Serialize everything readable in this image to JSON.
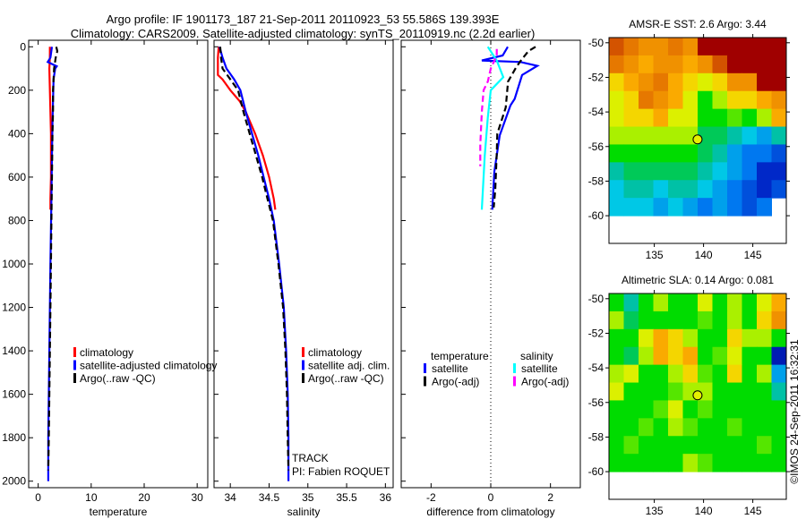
{
  "title_line1": "Argo profile: IF 1901173_187 21-Sep-2011 20110923_53 55.586S 139.393E",
  "title_line2": "Climatology: CARS2009. Satellite-adjusted climatology: synTS_20110919.nc (2.2d earlier)",
  "track_text": "TRACK",
  "pi_text": "PI: Fabien ROQUET",
  "copyright": "©IMOS 24-Sep-2011 16:32:31",
  "colors": {
    "climatology": "#ff0000",
    "satellite": "#0000ff",
    "argo": "#000000",
    "sal_satellite": "#00ffff",
    "sal_argo": "#ff00ff"
  },
  "chart_data": [
    {
      "type": "line",
      "xlabel": "temperature",
      "ylabel": "",
      "xlim": [
        -1.8,
        32
      ],
      "ylim": [
        2030,
        -30
      ],
      "xticks": [
        0,
        10,
        20,
        30
      ],
      "yticks": [
        0,
        200,
        400,
        600,
        800,
        1000,
        1200,
        1400,
        1600,
        1800,
        2000
      ],
      "legend": [
        "climatology",
        "satellite-adjusted climatology",
        "Argo(..raw -QC)"
      ],
      "legend_position": "center",
      "series": [
        {
          "name": "climatology",
          "color": "#ff0000",
          "dashed": false,
          "depth": [
            0,
            50,
            100,
            200,
            300,
            400,
            500,
            600,
            700,
            750
          ],
          "values": [
            2.2,
            2.2,
            2.1,
            2.2,
            2.3,
            2.4,
            2.4,
            2.4,
            2.3,
            2.3
          ]
        },
        {
          "name": "satellite-adjusted climatology",
          "color": "#0000ff",
          "dashed": false,
          "depth": [
            0,
            50,
            70,
            90,
            100,
            150,
            250,
            350,
            500,
            700,
            1000,
            1400,
            1800,
            2000
          ],
          "values": [
            2.6,
            2.3,
            1.8,
            3.5,
            3.2,
            2.9,
            2.8,
            2.7,
            2.6,
            2.5,
            2.3,
            2.1,
            1.9,
            1.9
          ]
        },
        {
          "name": "Argo(..raw -QC)",
          "color": "#000000",
          "dashed": true,
          "depth": [
            0,
            20,
            50,
            100,
            150,
            200,
            300,
            400,
            600,
            800,
            1000,
            1200,
            1400,
            1600,
            1800,
            1950
          ],
          "values": [
            3.4,
            3.6,
            3.3,
            3.0,
            2.9,
            2.8,
            2.8,
            2.7,
            2.6,
            2.5,
            2.4,
            2.3,
            2.2,
            2.1,
            2.0,
            1.9
          ]
        }
      ]
    },
    {
      "type": "line",
      "xlabel": "salinity",
      "xlim": [
        33.79,
        36.1
      ],
      "ylim": [
        2030,
        -30
      ],
      "xticks": [
        34,
        34.5,
        35,
        35.5,
        36
      ],
      "yticks": [
        0,
        200,
        400,
        600,
        800,
        1000,
        1200,
        1400,
        1600,
        1800,
        2000
      ],
      "legend": [
        "climatology",
        "satellite adj. clim.",
        "Argo(..raw -QC)"
      ],
      "legend_position": "center",
      "series": [
        {
          "name": "climatology",
          "color": "#ff0000",
          "dashed": false,
          "depth": [
            0,
            50,
            130,
            150,
            200,
            250,
            300,
            400,
            500,
            600,
            700,
            750
          ],
          "values": [
            33.85,
            33.84,
            33.84,
            33.9,
            34.0,
            34.12,
            34.2,
            34.32,
            34.42,
            34.5,
            34.56,
            34.58
          ]
        },
        {
          "name": "satellite adj. clim.",
          "color": "#0000ff",
          "dashed": false,
          "depth": [
            0,
            50,
            100,
            150,
            200,
            300,
            400,
            500,
            600,
            700,
            800,
            1000,
            1200,
            1400,
            1600,
            1800,
            2000
          ],
          "values": [
            33.86,
            33.9,
            33.95,
            34.05,
            34.13,
            34.2,
            34.28,
            34.36,
            34.43,
            34.5,
            34.56,
            34.63,
            34.69,
            34.72,
            34.74,
            34.75,
            34.75
          ]
        },
        {
          "name": "Argo(..raw -QC)",
          "color": "#000000",
          "dashed": true,
          "depth": [
            0,
            50,
            100,
            150,
            200,
            300,
            400,
            500,
            600,
            700,
            800,
            1000,
            1200,
            1400,
            1600,
            1800,
            1950
          ],
          "values": [
            33.87,
            33.88,
            33.9,
            34.0,
            34.1,
            34.17,
            34.25,
            34.33,
            34.41,
            34.48,
            34.55,
            34.62,
            34.68,
            34.71,
            34.73,
            34.74,
            34.75
          ]
        }
      ]
    },
    {
      "type": "line",
      "xlabel": "difference from climatology",
      "xlim": [
        -3,
        3
      ],
      "ylim": [
        2030,
        -30
      ],
      "xticks": [
        -2,
        0,
        2
      ],
      "yticks": [
        0,
        200,
        400,
        600,
        800,
        1000,
        1200,
        1400,
        1600,
        1800,
        2000
      ],
      "legend_groups": [
        {
          "heading": "temperature",
          "entries": [
            "satellite",
            "Argo(-adj)"
          ]
        },
        {
          "heading": "salinity",
          "entries": [
            "satellite",
            "Argo(-adj)"
          ]
        }
      ],
      "series": [
        {
          "name": "temperature satellite",
          "color": "#0000ff",
          "dashed": false,
          "depth": [
            0,
            40,
            63,
            70,
            88,
            130,
            240,
            270,
            408,
            575,
            750
          ],
          "values": [
            0.57,
            0.4,
            -0.3,
            1.0,
            1.56,
            1.05,
            0.8,
            0.66,
            0.3,
            0.12,
            0.05
          ]
        },
        {
          "name": "temperature Argo(-adj)",
          "color": "#000000",
          "dashed": true,
          "depth": [
            0,
            20,
            65,
            95,
            160,
            280,
            400,
            490,
            660,
            740
          ],
          "values": [
            1.5,
            1.26,
            1.0,
            0.85,
            0.58,
            0.5,
            0.22,
            0.2,
            0.15,
            0.1
          ]
        },
        {
          "name": "salinity satellite",
          "color": "#00ffff",
          "dashed": false,
          "depth": [
            0,
            63,
            140,
            200,
            325,
            500,
            750
          ],
          "values": [
            -0.1,
            0.2,
            0.42,
            0.0,
            -0.1,
            -0.2,
            -0.3
          ]
        },
        {
          "name": "salinity Argo(-adj)",
          "color": "#ff00ff",
          "dashed": true,
          "depth": [
            10,
            40,
            100,
            160,
            200,
            300,
            450,
            550
          ],
          "values": [
            0.2,
            0.2,
            0.0,
            -0.1,
            -0.24,
            -0.3,
            -0.35,
            -0.35
          ]
        }
      ]
    },
    {
      "type": "heatmap",
      "title": "AMSR-E SST: 2.6 Argo: 3.44",
      "xlim": [
        130.4,
        148.4
      ],
      "ylim": [
        -61.6,
        -49.7
      ],
      "xticks": [
        135,
        140,
        145
      ],
      "yticks": [
        -50,
        -52,
        -54,
        -56,
        -58,
        -60
      ],
      "lon_start": 130.4,
      "lon_step": 1.5,
      "lat_start": -49.7,
      "lat_step": -1.03,
      "color_scale_range": [
        0,
        10
      ],
      "argo_position": {
        "lon": 139.393,
        "lat": -55.586
      },
      "grid": [
        [
          9,
          8.5,
          8,
          8,
          8.5,
          8,
          10,
          10,
          10,
          10,
          10,
          10
        ],
        [
          8.5,
          8,
          7.5,
          8,
          8,
          7.5,
          8,
          9,
          10,
          10,
          10,
          10
        ],
        [
          7,
          7.5,
          8,
          8.5,
          7.5,
          7,
          6.5,
          7,
          8,
          8,
          10,
          10
        ],
        [
          6.5,
          7,
          8.5,
          8,
          7.5,
          6.5,
          5,
          6,
          7,
          7,
          7.5,
          8
        ],
        [
          6.5,
          7,
          7,
          7.5,
          6.5,
          6.5,
          5,
          5,
          5.5,
          5,
          6,
          7.5
        ],
        [
          6,
          6,
          6,
          6,
          6,
          6,
          4.5,
          4.5,
          4,
          3.5,
          3,
          4
        ],
        [
          5,
          5,
          5,
          5,
          5,
          5,
          4.5,
          4,
          3,
          2.5,
          2.5,
          2
        ],
        [
          4,
          4.5,
          4.5,
          4.5,
          4.5,
          4.5,
          4,
          3.5,
          3,
          2.5,
          1.5,
          1.5
        ],
        [
          3.5,
          4,
          4,
          3.5,
          4,
          4,
          3.5,
          3,
          2.5,
          2,
          1.5,
          2
        ],
        [
          3.5,
          3.5,
          3.5,
          3,
          3.5,
          3,
          2.5,
          3,
          2.5,
          2,
          2.5,
          null
        ]
      ]
    },
    {
      "type": "heatmap",
      "title": "Altimetric SLA: 0.14 Argo: 0.081",
      "xlim": [
        130.4,
        148.4
      ],
      "ylim": [
        -61.6,
        -49.7
      ],
      "xticks": [
        135,
        140,
        145
      ],
      "yticks": [
        -50,
        -52,
        -54,
        -56,
        -58,
        -60
      ],
      "lon_start": 130.4,
      "lon_step": 1.5,
      "lat_start": -49.7,
      "lat_step": -1.03,
      "color_scale_range": [
        0,
        10
      ],
      "argo_position": {
        "lon": 139.393,
        "lat": -55.586
      },
      "grid": [
        [
          5,
          4,
          5,
          6,
          5,
          5,
          6.5,
          5,
          6,
          5,
          6.5,
          7.5
        ],
        [
          6,
          4.5,
          5,
          5,
          5,
          5,
          5.5,
          5,
          6,
          5,
          7,
          8
        ],
        [
          5,
          5,
          6.5,
          7.5,
          7,
          6,
          5,
          5,
          7,
          6,
          6,
          5
        ],
        [
          5,
          4.5,
          6,
          7.5,
          7,
          7.5,
          5,
          5.5,
          6.5,
          5,
          5,
          1
        ],
        [
          6,
          6.5,
          5,
          5,
          6,
          7,
          5.5,
          5,
          7,
          5,
          6,
          3
        ],
        [
          6.5,
          5,
          5,
          5,
          5.5,
          6,
          6,
          5,
          5,
          5,
          5,
          4
        ],
        [
          5,
          5,
          5,
          5.5,
          6.5,
          5,
          5.5,
          5,
          5,
          5,
          5,
          5
        ],
        [
          5,
          5,
          5.5,
          5,
          6,
          5.5,
          5,
          5,
          5.5,
          5,
          5,
          5
        ],
        [
          5,
          5.5,
          5,
          5,
          5,
          5,
          5,
          5,
          5,
          5,
          5.5,
          5
        ],
        [
          5,
          5,
          5,
          5,
          5,
          6,
          5.5,
          5,
          5,
          5,
          5,
          5
        ]
      ]
    }
  ]
}
